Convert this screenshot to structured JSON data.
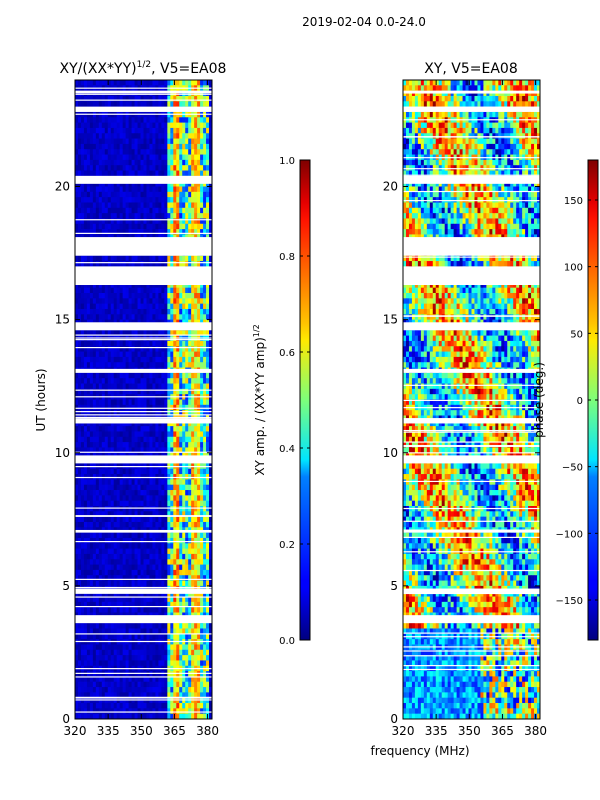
{
  "page_title": "2019-02-04 0.0-24.0",
  "xlabel": "frequency (MHz)",
  "colors": {
    "panel_bg": "#00008f",
    "white": "#ffffff"
  },
  "chart_data": [
    {
      "type": "heatmap",
      "title_main": "XY/(XX*YY)",
      "title_sup": "1/2",
      "title_tail": ", V5=EA08",
      "ylabel": "UT (hours)",
      "x_ticks": [
        "320",
        "335",
        "350",
        "365",
        "380"
      ],
      "x_tick_values": [
        320,
        335,
        350,
        365,
        380
      ],
      "xlim": [
        320,
        382
      ],
      "y_ticks": [
        "0",
        "5",
        "10",
        "15",
        "20"
      ],
      "y_tick_values": [
        0,
        5,
        10,
        15,
        20
      ],
      "ylim": [
        0,
        24
      ],
      "colorbar": {
        "label_main": "XY amp. / (XX*YY amp)",
        "label_sup": "1/2",
        "ticks": [
          "0.0",
          "0.2",
          "0.4",
          "0.6",
          "0.8",
          "1.0"
        ],
        "tick_values": [
          0.0,
          0.2,
          0.4,
          0.6,
          0.8,
          1.0
        ],
        "range": [
          0.0,
          1.0
        ]
      }
    },
    {
      "type": "heatmap",
      "title_main": "XY, V5=EA08",
      "ylabel": "",
      "x_ticks": [
        "320",
        "335",
        "350",
        "365",
        "380"
      ],
      "x_tick_values": [
        320,
        335,
        350,
        365,
        380
      ],
      "xlim": [
        320,
        382
      ],
      "y_ticks": [
        "0",
        "5",
        "10",
        "15",
        "20"
      ],
      "y_tick_values": [
        0,
        5,
        10,
        15,
        20
      ],
      "ylim": [
        0,
        24
      ],
      "colorbar": {
        "label_main": "phase (deg.)",
        "ticks": [
          "−150",
          "−100",
          "−50",
          "0",
          "50",
          "100",
          "150"
        ],
        "tick_values": [
          -150,
          -100,
          -50,
          0,
          50,
          100,
          150
        ],
        "range": [
          -180,
          180
        ]
      }
    }
  ],
  "gaps_hours": [
    [
      16.3,
      17.0
    ],
    [
      17.4,
      18.1
    ],
    [
      20.1,
      20.4
    ],
    [
      14.6,
      14.9
    ],
    [
      11.1,
      11.3
    ],
    [
      9.6,
      9.9
    ],
    [
      4.7,
      4.9
    ],
    [
      3.6,
      3.9
    ],
    [
      13.0,
      13.15
    ],
    [
      7.0,
      7.1
    ],
    [
      22.8,
      23.0
    ],
    [
      23.5,
      23.6
    ]
  ]
}
